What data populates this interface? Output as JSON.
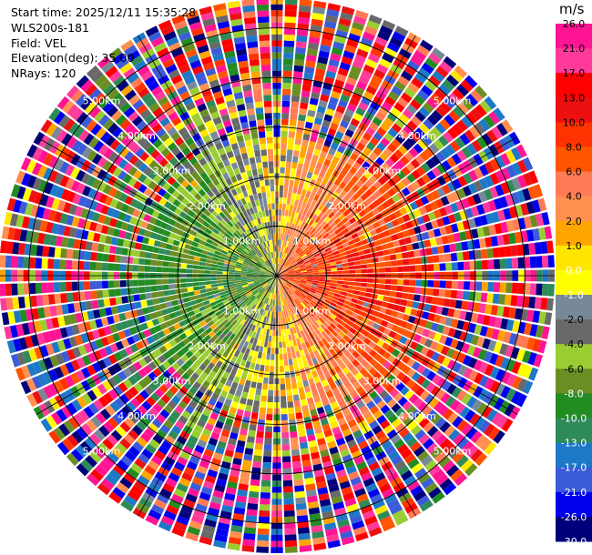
{
  "header": {
    "start_time": "Start time: 2025/12/11 15:35:28",
    "instrument": "WLS200s-181",
    "field": "Field: VEL",
    "elevation": "Elevation(deg): 35.00",
    "nrays": "NRays: 120"
  },
  "chart_data": {
    "type": "heatmap",
    "projection": "polar-ppi",
    "n_rays": 120,
    "elevation_deg": 35.0,
    "field": "VEL",
    "unit": "m/s",
    "range_rings_km": [
      1.0,
      2.0,
      3.0,
      4.0,
      5.0
    ],
    "ring_labels": [
      "1.00km",
      "2.00km",
      "3.00km",
      "4.00km",
      "5.00km"
    ],
    "max_range_km": 5.6,
    "colorbar": {
      "ticks": [
        "26.0",
        "21.0",
        "17.0",
        "13.0",
        "10.0",
        "8.0",
        "6.0",
        "4.0",
        "2.0",
        "1.0",
        "0.0",
        "-1.0",
        "-2.0",
        "-4.0",
        "-6.0",
        "-8.0",
        "-10.0",
        "-13.0",
        "-17.0",
        "-21.0",
        "-26.0",
        "-30.0"
      ],
      "colors": [
        "#ff1493",
        "#ff3a9a",
        "#ff0000",
        "#ee1010",
        "#ff3300",
        "#ff5500",
        "#ff7a55",
        "#ff9050",
        "#ffa500",
        "#ffe600",
        "#ffff00",
        "#778899",
        "#696969",
        "#9acd32",
        "#6b8e23",
        "#228b22",
        "#2e8b57",
        "#1e78c8",
        "#3b5bd8",
        "#0000ee",
        "#00007a",
        "#1a1a6b"
      ]
    }
  }
}
